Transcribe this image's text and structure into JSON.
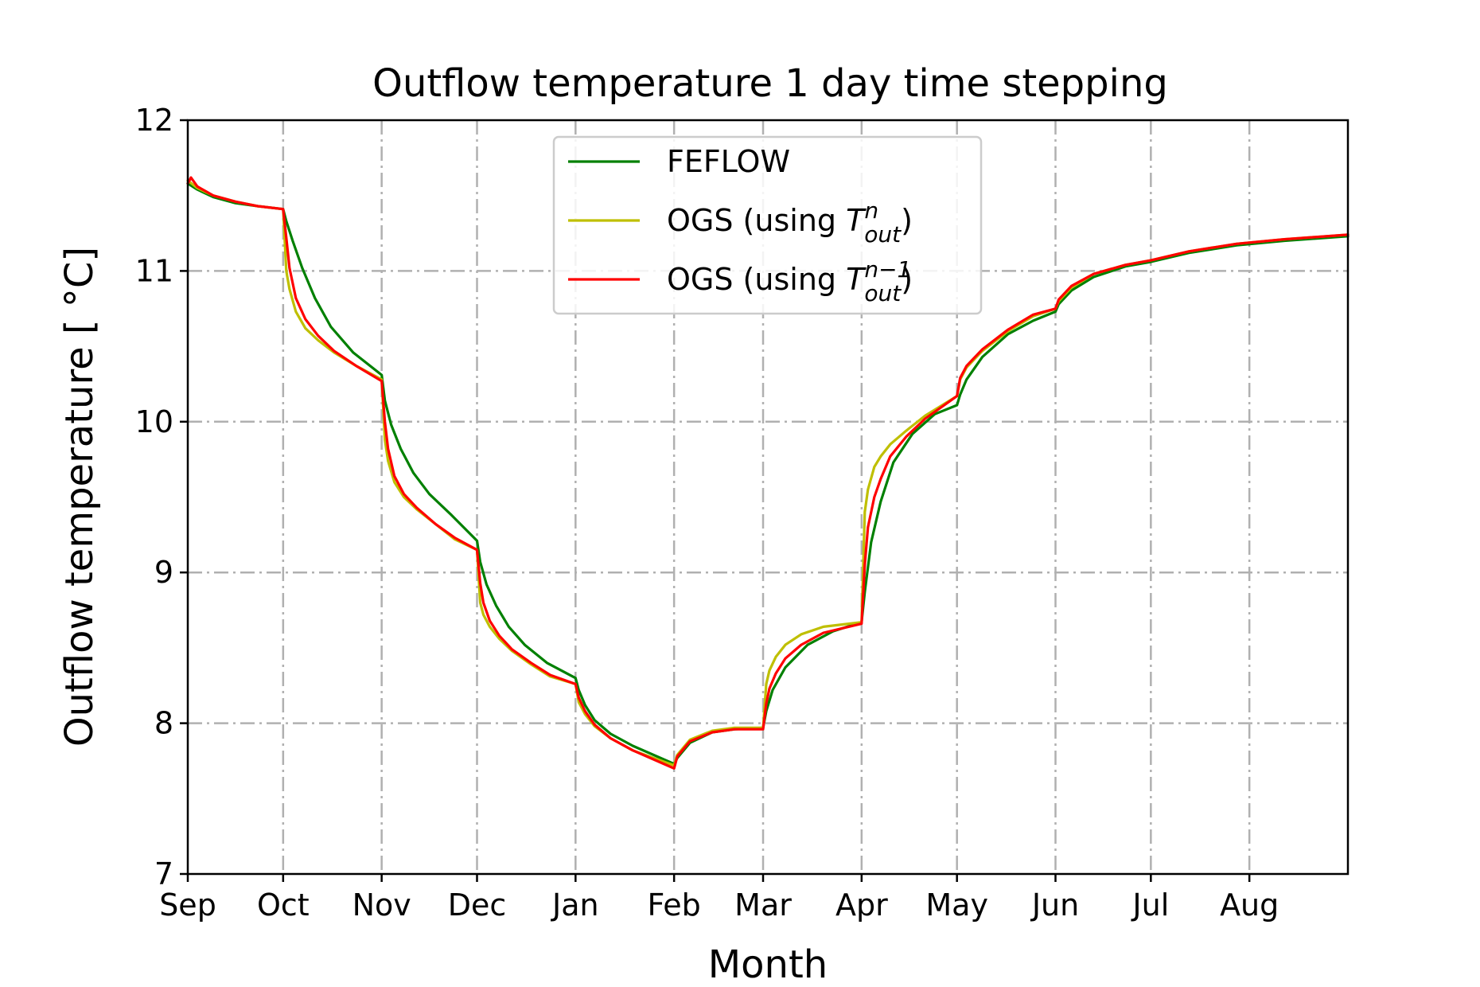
{
  "chart_data": {
    "type": "line",
    "title": "Outflow temperature 1 day time stepping",
    "xlabel": "Month",
    "ylabel": "Outflow temperature [ °C]",
    "xlim": [
      0,
      365
    ],
    "ylim": [
      7,
      12
    ],
    "yticks": [
      7,
      8,
      9,
      10,
      11,
      12
    ],
    "xticks": [
      {
        "label": "Sep",
        "day": 0
      },
      {
        "label": "Oct",
        "day": 30
      },
      {
        "label": "Nov",
        "day": 61
      },
      {
        "label": "Dec",
        "day": 91
      },
      {
        "label": "Jan",
        "day": 122
      },
      {
        "label": "Feb",
        "day": 153
      },
      {
        "label": "Mar",
        "day": 181
      },
      {
        "label": "Apr",
        "day": 212
      },
      {
        "label": "May",
        "day": 242
      },
      {
        "label": "Jun",
        "day": 273
      },
      {
        "label": "Jul",
        "day": 303
      },
      {
        "label": "Aug",
        "day": 334
      }
    ],
    "grid": true,
    "legend_position": "top-center",
    "series": [
      {
        "name": "FEFLOW",
        "color": "#008000",
        "x": [
          0,
          3,
          8,
          15,
          22,
          30,
          31,
          33,
          36,
          40,
          45,
          52,
          61,
          62,
          64,
          67,
          71,
          76,
          83,
          91,
          92,
          94,
          97,
          101,
          106,
          113,
          122,
          123,
          125,
          128,
          133,
          140,
          153,
          154,
          158,
          165,
          172,
          181,
          182,
          184,
          188,
          195,
          203,
          212,
          213,
          215,
          218,
          222,
          228,
          235,
          242,
          243,
          245,
          250,
          258,
          266,
          273,
          274,
          278,
          285,
          295,
          303,
          315,
          330,
          345,
          365
        ],
        "y": [
          11.58,
          11.54,
          11.49,
          11.45,
          11.43,
          11.41,
          11.33,
          11.2,
          11.02,
          10.82,
          10.63,
          10.46,
          10.31,
          10.14,
          9.98,
          9.82,
          9.66,
          9.52,
          9.38,
          9.21,
          9.07,
          8.92,
          8.78,
          8.64,
          8.52,
          8.4,
          8.3,
          8.22,
          8.12,
          8.02,
          7.93,
          7.85,
          7.73,
          7.77,
          7.87,
          7.94,
          7.96,
          7.97,
          8.08,
          8.22,
          8.37,
          8.52,
          8.61,
          8.67,
          8.87,
          9.2,
          9.47,
          9.73,
          9.92,
          10.05,
          10.11,
          10.18,
          10.28,
          10.43,
          10.58,
          10.67,
          10.73,
          10.78,
          10.87,
          10.96,
          11.03,
          11.06,
          11.12,
          11.17,
          11.2,
          11.23
        ]
      },
      {
        "name": "OGS (using T_out^n)",
        "color": "#bfbf00",
        "x": [
          0,
          3,
          8,
          15,
          22,
          30,
          31,
          32,
          34,
          37,
          41,
          46,
          53,
          61,
          62,
          63,
          65,
          68,
          72,
          78,
          84,
          91,
          92,
          93,
          95,
          98,
          102,
          108,
          114,
          122,
          123,
          125,
          128,
          133,
          140,
          153,
          154,
          158,
          165,
          172,
          181,
          182,
          183,
          185,
          188,
          193,
          200,
          212,
          213,
          214,
          216,
          218,
          221,
          226,
          232,
          242,
          243,
          245,
          250,
          258,
          266,
          273,
          274,
          278,
          285,
          295,
          303,
          315,
          330,
          345,
          365
        ],
        "y": [
          11.6,
          11.55,
          11.5,
          11.46,
          11.43,
          11.41,
          11.0,
          10.88,
          10.73,
          10.62,
          10.54,
          10.46,
          10.37,
          10.28,
          9.88,
          9.74,
          9.6,
          9.5,
          9.42,
          9.32,
          9.22,
          9.15,
          8.8,
          8.72,
          8.64,
          8.56,
          8.48,
          8.39,
          8.31,
          8.26,
          8.14,
          8.06,
          7.98,
          7.9,
          7.82,
          7.72,
          7.79,
          7.89,
          7.95,
          7.97,
          7.97,
          8.26,
          8.35,
          8.44,
          8.52,
          8.59,
          8.64,
          8.67,
          9.4,
          9.55,
          9.7,
          9.77,
          9.85,
          9.94,
          10.04,
          10.17,
          10.28,
          10.36,
          10.47,
          10.6,
          10.7,
          10.75,
          10.8,
          10.89,
          10.98,
          11.04,
          11.07,
          11.13,
          11.18,
          11.21,
          11.24
        ]
      },
      {
        "name": "OGS (using T_out^(n-1))",
        "color": "#ff0000",
        "x": [
          0,
          1,
          3,
          8,
          15,
          22,
          30,
          31,
          32,
          34,
          37,
          41,
          46,
          53,
          61,
          62,
          63,
          65,
          68,
          72,
          78,
          84,
          91,
          92,
          93,
          95,
          98,
          102,
          108,
          114,
          122,
          123,
          125,
          128,
          133,
          140,
          153,
          154,
          158,
          165,
          172,
          181,
          182,
          183,
          185,
          188,
          193,
          200,
          212,
          213,
          214,
          216,
          218,
          221,
          226,
          232,
          242,
          243,
          245,
          250,
          258,
          266,
          273,
          274,
          278,
          285,
          295,
          303,
          315,
          330,
          345,
          365
        ],
        "y": [
          11.58,
          11.62,
          11.56,
          11.5,
          11.46,
          11.43,
          11.41,
          11.22,
          11.02,
          10.82,
          10.68,
          10.57,
          10.47,
          10.37,
          10.27,
          10.0,
          9.82,
          9.64,
          9.52,
          9.43,
          9.32,
          9.23,
          9.15,
          8.93,
          8.8,
          8.68,
          8.58,
          8.49,
          8.4,
          8.32,
          8.26,
          8.17,
          8.08,
          7.99,
          7.9,
          7.82,
          7.7,
          7.78,
          7.88,
          7.94,
          7.96,
          7.96,
          8.13,
          8.23,
          8.33,
          8.43,
          8.52,
          8.6,
          8.66,
          9.05,
          9.3,
          9.5,
          9.62,
          9.77,
          9.9,
          10.02,
          10.17,
          10.29,
          10.37,
          10.48,
          10.61,
          10.71,
          10.75,
          10.81,
          10.9,
          10.98,
          11.04,
          11.07,
          11.13,
          11.18,
          11.21,
          11.24
        ]
      }
    ]
  }
}
